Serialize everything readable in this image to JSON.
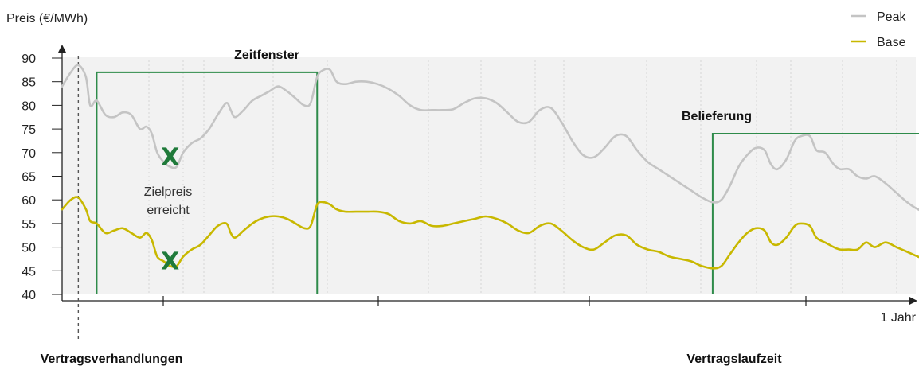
{
  "chart_data": {
    "type": "line",
    "ylabel": "Preis (€/MWh)",
    "xlabel": "1 Jahr",
    "ylim": [
      40,
      90
    ],
    "yticks": [
      40,
      45,
      50,
      55,
      60,
      65,
      70,
      75,
      80,
      85,
      90
    ],
    "legend": {
      "placement": "top-right"
    },
    "series": [
      {
        "name": "Peak",
        "color": "#c4c4c4",
        "points": [
          [
            0,
            84
          ],
          [
            0.8,
            87
          ],
          [
            1.5,
            88.5
          ],
          [
            2.2,
            86
          ],
          [
            2.6,
            80
          ],
          [
            3.2,
            81
          ],
          [
            4,
            78
          ],
          [
            4.8,
            77.5
          ],
          [
            5.6,
            78.5
          ],
          [
            6.4,
            78
          ],
          [
            7.2,
            75
          ],
          [
            7.8,
            75.5
          ],
          [
            8.3,
            74
          ],
          [
            8.8,
            70
          ],
          [
            9.4,
            68
          ],
          [
            10,
            67
          ],
          [
            10.6,
            67
          ],
          [
            11.2,
            70
          ],
          [
            12,
            72
          ],
          [
            12.8,
            73
          ],
          [
            13.6,
            75
          ],
          [
            14.4,
            78
          ],
          [
            15.2,
            80.5
          ],
          [
            15.6,
            79
          ],
          [
            16,
            77.5
          ],
          [
            16.8,
            79
          ],
          [
            17.6,
            81
          ],
          [
            18.4,
            82
          ],
          [
            19.2,
            83
          ],
          [
            20,
            84
          ],
          [
            20.8,
            83
          ],
          [
            21.6,
            81.5
          ],
          [
            22.4,
            80
          ],
          [
            23,
            80.5
          ],
          [
            23.6,
            86
          ],
          [
            24.2,
            87.5
          ],
          [
            24.8,
            87.5
          ],
          [
            25.4,
            85
          ],
          [
            26.2,
            84.5
          ],
          [
            27.2,
            85
          ],
          [
            28.2,
            85
          ],
          [
            29.2,
            84.5
          ],
          [
            30.2,
            83.5
          ],
          [
            31.2,
            82
          ],
          [
            32.2,
            80
          ],
          [
            33.2,
            79
          ],
          [
            34.2,
            79
          ],
          [
            35.2,
            79
          ],
          [
            36.2,
            79.2
          ],
          [
            37.2,
            80.5
          ],
          [
            38.2,
            81.5
          ],
          [
            39.2,
            81.5
          ],
          [
            40.2,
            80.5
          ],
          [
            41.2,
            78.5
          ],
          [
            42.2,
            76.5
          ],
          [
            43.2,
            76.5
          ],
          [
            44.2,
            79
          ],
          [
            45.2,
            79.5
          ],
          [
            46.2,
            76.5
          ],
          [
            47.2,
            72.5
          ],
          [
            48.2,
            69.5
          ],
          [
            49.2,
            69
          ],
          [
            50.2,
            71
          ],
          [
            51.2,
            73.5
          ],
          [
            52.2,
            73.5
          ],
          [
            53.2,
            70.5
          ],
          [
            54.2,
            68
          ],
          [
            55.2,
            66.5
          ],
          [
            56.2,
            65
          ],
          [
            57.2,
            63.5
          ],
          [
            58.2,
            62
          ],
          [
            59.2,
            60.5
          ],
          [
            60.2,
            59.5
          ],
          [
            61,
            60
          ],
          [
            61.8,
            63
          ],
          [
            62.6,
            67
          ],
          [
            63.4,
            69.5
          ],
          [
            64.2,
            71
          ],
          [
            65,
            70.5
          ],
          [
            65.6,
            67.5
          ],
          [
            66.2,
            66.5
          ],
          [
            67,
            68.5
          ],
          [
            67.8,
            72.5
          ],
          [
            68.4,
            73.5
          ],
          [
            69.2,
            73.5
          ],
          [
            69.8,
            70.5
          ],
          [
            70.6,
            70
          ],
          [
            71.4,
            67.5
          ],
          [
            72,
            66.5
          ],
          [
            72.8,
            66.5
          ],
          [
            73.6,
            65
          ],
          [
            74.4,
            64.5
          ],
          [
            75.2,
            65
          ],
          [
            76.2,
            63.5
          ],
          [
            77.2,
            61.5
          ],
          [
            78.2,
            59.5
          ],
          [
            79.2,
            58
          ],
          [
            80,
            57.5
          ],
          [
            80.8,
            59
          ],
          [
            81.6,
            60
          ],
          [
            82.4,
            60.5
          ],
          [
            83.2,
            60
          ],
          [
            84,
            59.5
          ]
        ]
      },
      {
        "name": "Base",
        "color": "#c8b800",
        "points": [
          [
            0,
            58
          ],
          [
            0.8,
            60
          ],
          [
            1.5,
            60.5
          ],
          [
            2.2,
            58
          ],
          [
            2.6,
            55.5
          ],
          [
            3.2,
            55
          ],
          [
            4,
            53
          ],
          [
            4.8,
            53.5
          ],
          [
            5.6,
            54
          ],
          [
            6.4,
            53
          ],
          [
            7.2,
            52
          ],
          [
            7.8,
            53
          ],
          [
            8.3,
            51.5
          ],
          [
            8.8,
            48
          ],
          [
            9.4,
            47
          ],
          [
            10,
            46
          ],
          [
            10.6,
            46
          ],
          [
            11.2,
            48
          ],
          [
            12,
            49.5
          ],
          [
            12.8,
            50.5
          ],
          [
            13.6,
            52.5
          ],
          [
            14.4,
            54.5
          ],
          [
            15.2,
            55
          ],
          [
            15.6,
            53
          ],
          [
            16,
            52
          ],
          [
            16.8,
            53.5
          ],
          [
            17.6,
            55
          ],
          [
            18.4,
            56
          ],
          [
            19.2,
            56.5
          ],
          [
            20,
            56.5
          ],
          [
            20.8,
            56
          ],
          [
            21.6,
            55
          ],
          [
            22.4,
            54
          ],
          [
            23,
            54.5
          ],
          [
            23.6,
            59
          ],
          [
            24.2,
            59.5
          ],
          [
            24.8,
            59
          ],
          [
            25.4,
            58
          ],
          [
            26.2,
            57.5
          ],
          [
            27.2,
            57.5
          ],
          [
            28.2,
            57.5
          ],
          [
            29.2,
            57.5
          ],
          [
            30.2,
            57
          ],
          [
            31.2,
            55.5
          ],
          [
            32.2,
            55
          ],
          [
            33.2,
            55.5
          ],
          [
            34.2,
            54.5
          ],
          [
            35.2,
            54.5
          ],
          [
            36.2,
            55
          ],
          [
            37.2,
            55.5
          ],
          [
            38.2,
            56
          ],
          [
            39.2,
            56.5
          ],
          [
            40.2,
            56
          ],
          [
            41.2,
            55
          ],
          [
            42.2,
            53.5
          ],
          [
            43.2,
            53
          ],
          [
            44.2,
            54.5
          ],
          [
            45.2,
            55
          ],
          [
            46.2,
            53.5
          ],
          [
            47.2,
            51.5
          ],
          [
            48.2,
            50
          ],
          [
            49.2,
            49.5
          ],
          [
            50.2,
            51
          ],
          [
            51.2,
            52.5
          ],
          [
            52.2,
            52.5
          ],
          [
            53.2,
            50.5
          ],
          [
            54.2,
            49.5
          ],
          [
            55.2,
            49
          ],
          [
            56.2,
            48
          ],
          [
            57.2,
            47.5
          ],
          [
            58.2,
            47
          ],
          [
            59.2,
            46
          ],
          [
            60.2,
            45.5
          ],
          [
            61,
            46
          ],
          [
            61.8,
            48.5
          ],
          [
            62.6,
            51
          ],
          [
            63.4,
            53
          ],
          [
            64.2,
            54
          ],
          [
            65,
            53.5
          ],
          [
            65.6,
            51
          ],
          [
            66.2,
            50.5
          ],
          [
            67,
            52
          ],
          [
            67.8,
            54.5
          ],
          [
            68.4,
            55
          ],
          [
            69.2,
            54.5
          ],
          [
            69.8,
            52
          ],
          [
            70.6,
            51
          ],
          [
            71.4,
            50
          ],
          [
            72,
            49.5
          ],
          [
            72.8,
            49.5
          ],
          [
            73.6,
            49.5
          ],
          [
            74.4,
            51
          ],
          [
            75.2,
            50
          ],
          [
            76.2,
            51
          ],
          [
            77.2,
            50
          ],
          [
            78.2,
            49
          ],
          [
            79.2,
            48
          ],
          [
            80,
            47.5
          ],
          [
            80.8,
            47.5
          ],
          [
            81.6,
            48
          ],
          [
            82.4,
            49
          ],
          [
            83.2,
            49.5
          ],
          [
            84,
            49
          ]
        ]
      }
    ],
    "annotations": {
      "verhandlungen_label": "Vertragsverhandlungen",
      "laufzeit_label": "Vertragslaufzeit",
      "zeitfenster_label": "Zeitfenster",
      "belieferung_label": "Belieferung",
      "zielpreis_line1": "Zielpreis",
      "zielpreis_line2": "erreicht",
      "marker_glyph": "X",
      "zeitfenster": {
        "x_start": 3.2,
        "x_end": 23.6,
        "y_top": 87
      },
      "belieferung": {
        "x_start": 60.2,
        "x_end": 87.6,
        "y_top": 74
      },
      "verhandlungen_x": 1.5,
      "markers": [
        {
          "x": 10,
          "y": 69
        },
        {
          "x": 10,
          "y": 47
        }
      ]
    },
    "colors": {
      "peak": "#c4c4c4",
      "base": "#c8b800",
      "box": "#2e8b4a",
      "marker": "#1f7a3a",
      "background_shade": "#f2f2f2"
    }
  }
}
